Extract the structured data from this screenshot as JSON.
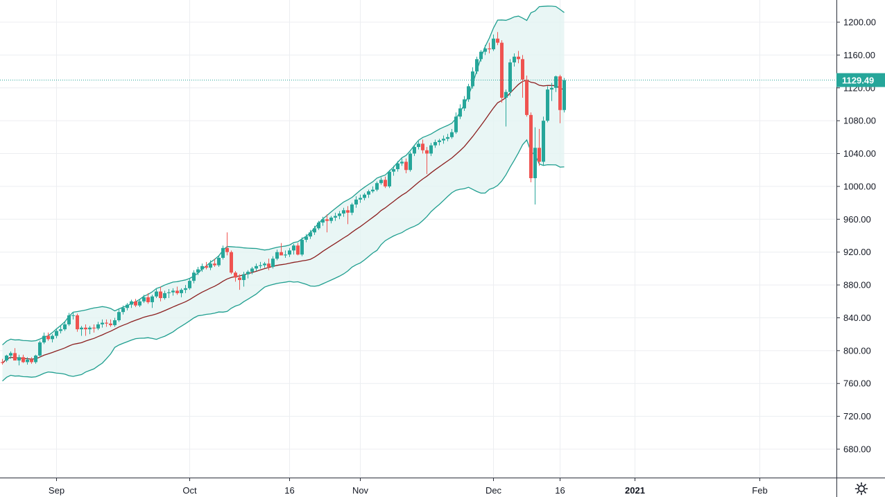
{
  "chart_data": {
    "type": "candlestick",
    "title": "",
    "indicator": "Bollinger Bands",
    "ylim": [
      640,
      1230
    ],
    "y_ticks": [
      "1200.00",
      "1160.00",
      "1120.00",
      "1080.00",
      "1040.00",
      "1000.00",
      "960.00",
      "920.00",
      "880.00",
      "840.00",
      "800.00",
      "760.00",
      "720.00",
      "680.00"
    ],
    "x_ticks": [
      {
        "label": "Sep",
        "index": 13,
        "bold": false
      },
      {
        "label": "Oct",
        "index": 45,
        "bold": false
      },
      {
        "label": "16",
        "index": 69,
        "bold": false
      },
      {
        "label": "Nov",
        "index": 86,
        "bold": false
      },
      {
        "label": "Dec",
        "index": 118,
        "bold": false
      },
      {
        "label": "16",
        "index": 134,
        "bold": false
      },
      {
        "label": "2021",
        "index": 152,
        "bold": true
      },
      {
        "label": "Feb",
        "index": 182,
        "bold": false
      }
    ],
    "last_price": 1129.49,
    "last_price_label": "1129.49",
    "candles": [
      [
        786,
        790,
        783,
        785
      ],
      [
        788,
        795,
        786,
        794
      ],
      [
        794,
        799,
        790,
        797
      ],
      [
        797,
        803,
        788,
        788
      ],
      [
        788,
        795,
        782,
        792
      ],
      [
        792,
        795,
        785,
        786
      ],
      [
        786,
        792,
        783,
        789
      ],
      [
        789,
        792,
        784,
        786
      ],
      [
        786,
        795,
        784,
        794
      ],
      [
        794,
        812,
        792,
        810
      ],
      [
        810,
        822,
        808,
        818
      ],
      [
        818,
        822,
        812,
        814
      ],
      [
        814,
        820,
        810,
        818
      ],
      [
        818,
        826,
        815,
        824
      ],
      [
        824,
        830,
        821,
        826
      ],
      [
        826,
        835,
        824,
        832
      ],
      [
        832,
        846,
        830,
        843
      ],
      [
        843,
        847,
        838,
        843
      ],
      [
        843,
        845,
        823,
        826
      ],
      [
        826,
        830,
        818,
        828
      ],
      [
        828,
        832,
        818,
        826
      ],
      [
        826,
        830,
        820,
        828
      ],
      [
        828,
        832,
        822,
        827
      ],
      [
        827,
        835,
        825,
        832
      ],
      [
        832,
        838,
        828,
        834
      ],
      [
        834,
        838,
        829,
        833
      ],
      [
        833,
        838,
        829,
        831
      ],
      [
        831,
        840,
        829,
        837
      ],
      [
        837,
        850,
        835,
        847
      ],
      [
        847,
        855,
        844,
        852
      ],
      [
        852,
        858,
        849,
        856
      ],
      [
        856,
        862,
        852,
        860
      ],
      [
        860,
        863,
        853,
        855
      ],
      [
        855,
        862,
        853,
        860
      ],
      [
        860,
        868,
        858,
        865
      ],
      [
        865,
        870,
        857,
        859
      ],
      [
        859,
        868,
        852,
        866
      ],
      [
        866,
        875,
        864,
        872
      ],
      [
        872,
        878,
        860,
        864
      ],
      [
        864,
        873,
        862,
        870
      ],
      [
        870,
        875,
        864,
        871
      ],
      [
        871,
        876,
        867,
        873
      ],
      [
        873,
        878,
        868,
        870
      ],
      [
        870,
        876,
        865,
        874
      ],
      [
        874,
        880,
        870,
        876
      ],
      [
        876,
        888,
        874,
        885
      ],
      [
        885,
        898,
        882,
        895
      ],
      [
        895,
        902,
        892,
        899
      ],
      [
        899,
        906,
        896,
        903
      ],
      [
        903,
        908,
        899,
        901
      ],
      [
        901,
        910,
        898,
        906
      ],
      [
        906,
        912,
        902,
        904
      ],
      [
        904,
        916,
        902,
        913
      ],
      [
        913,
        928,
        911,
        925
      ],
      [
        925,
        944,
        916,
        920
      ],
      [
        920,
        922,
        893,
        895
      ],
      [
        895,
        897,
        884,
        889
      ],
      [
        889,
        893,
        874,
        886
      ],
      [
        886,
        896,
        878,
        893
      ],
      [
        893,
        898,
        888,
        896
      ],
      [
        896,
        902,
        893,
        900
      ],
      [
        900,
        906,
        897,
        903
      ],
      [
        903,
        908,
        900,
        904
      ],
      [
        904,
        908,
        901,
        906
      ],
      [
        906,
        912,
        898,
        902
      ],
      [
        902,
        915,
        900,
        912
      ],
      [
        912,
        923,
        910,
        920
      ],
      [
        920,
        931,
        918,
        916
      ],
      [
        916,
        922,
        913,
        917
      ],
      [
        917,
        925,
        914,
        922
      ],
      [
        922,
        930,
        917,
        928
      ],
      [
        928,
        931,
        916,
        917
      ],
      [
        917,
        938,
        915,
        935
      ],
      [
        935,
        942,
        932,
        939
      ],
      [
        939,
        947,
        936,
        944
      ],
      [
        944,
        952,
        941,
        949
      ],
      [
        949,
        958,
        947,
        956
      ],
      [
        956,
        963,
        952,
        960
      ],
      [
        960,
        966,
        944,
        958
      ],
      [
        958,
        964,
        955,
        962
      ],
      [
        962,
        968,
        958,
        964
      ],
      [
        964,
        970,
        960,
        967
      ],
      [
        967,
        974,
        963,
        971
      ],
      [
        971,
        976,
        954,
        968
      ],
      [
        968,
        980,
        965,
        978
      ],
      [
        978,
        988,
        974,
        984
      ],
      [
        984,
        990,
        980,
        986
      ],
      [
        986,
        992,
        983,
        990
      ],
      [
        990,
        996,
        986,
        994
      ],
      [
        994,
        1000,
        992,
        996
      ],
      [
        996,
        1006,
        994,
        1004
      ],
      [
        1004,
        1011,
        1002,
        1008
      ],
      [
        1008,
        1012,
        998,
        1000
      ],
      [
        1000,
        1020,
        998,
        1018
      ],
      [
        1018,
        1025,
        1013,
        1021
      ],
      [
        1021,
        1031,
        1018,
        1028
      ],
      [
        1028,
        1034,
        1025,
        1030
      ],
      [
        1030,
        1034,
        1016,
        1020
      ],
      [
        1020,
        1042,
        1018,
        1040
      ],
      [
        1040,
        1050,
        1037,
        1048
      ],
      [
        1048,
        1055,
        1045,
        1052
      ],
      [
        1052,
        1057,
        1040,
        1044
      ],
      [
        1044,
        1048,
        1015,
        1040
      ],
      [
        1040,
        1053,
        1037,
        1050
      ],
      [
        1050,
        1057,
        1047,
        1054
      ],
      [
        1054,
        1058,
        1050,
        1056
      ],
      [
        1056,
        1062,
        1052,
        1058
      ],
      [
        1058,
        1064,
        1055,
        1060
      ],
      [
        1060,
        1070,
        1058,
        1066
      ],
      [
        1066,
        1090,
        1064,
        1085
      ],
      [
        1085,
        1100,
        1082,
        1095
      ],
      [
        1095,
        1110,
        1092,
        1106
      ],
      [
        1106,
        1125,
        1103,
        1122
      ],
      [
        1122,
        1145,
        1119,
        1140
      ],
      [
        1140,
        1158,
        1137,
        1155
      ],
      [
        1155,
        1166,
        1152,
        1164
      ],
      [
        1164,
        1172,
        1160,
        1168
      ],
      [
        1168,
        1175,
        1162,
        1167
      ],
      [
        1167,
        1185,
        1165,
        1180
      ],
      [
        1180,
        1188,
        1172,
        1175
      ],
      [
        1175,
        1178,
        1102,
        1108
      ],
      [
        1108,
        1118,
        1073,
        1115
      ],
      [
        1115,
        1155,
        1110,
        1151
      ],
      [
        1151,
        1162,
        1146,
        1158
      ],
      [
        1158,
        1165,
        1150,
        1155
      ],
      [
        1155,
        1160,
        1108,
        1130
      ],
      [
        1130,
        1135,
        1085,
        1087
      ],
      [
        1087,
        1090,
        1005,
        1010
      ],
      [
        1010,
        1072,
        978,
        1047
      ],
      [
        1047,
        1070,
        1025,
        1030
      ],
      [
        1030,
        1085,
        1026,
        1080
      ],
      [
        1080,
        1122,
        1078,
        1118
      ],
      [
        1118,
        1126,
        1104,
        1120
      ],
      [
        1120,
        1135,
        1115,
        1134
      ],
      [
        1134,
        1136,
        1077,
        1093
      ],
      [
        1093,
        1132,
        1090,
        1129.49
      ]
    ]
  },
  "axis": {
    "settings_icon": "gear-icon"
  },
  "colors": {
    "up": "#26a69a",
    "down": "#ef5350",
    "band": "#1e9e8f",
    "band_fill": "#e3f4f2",
    "basis": "#8b1e1e",
    "grid": "#eceef1",
    "price_line": "#26a69a"
  }
}
